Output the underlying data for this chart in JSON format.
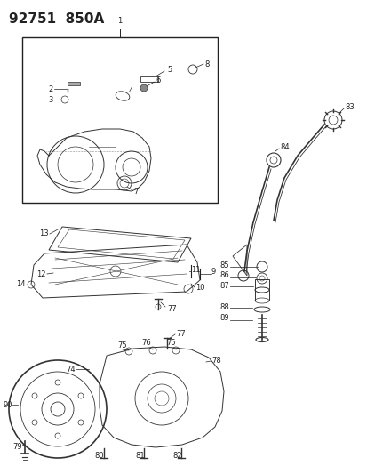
{
  "title": "92751  850A",
  "bg_color": "#ffffff",
  "title_fontsize": 11,
  "fig_width": 4.14,
  "fig_height": 5.33,
  "dpi": 100,
  "line_color": "#222222",
  "label_fontsize": 6.0
}
